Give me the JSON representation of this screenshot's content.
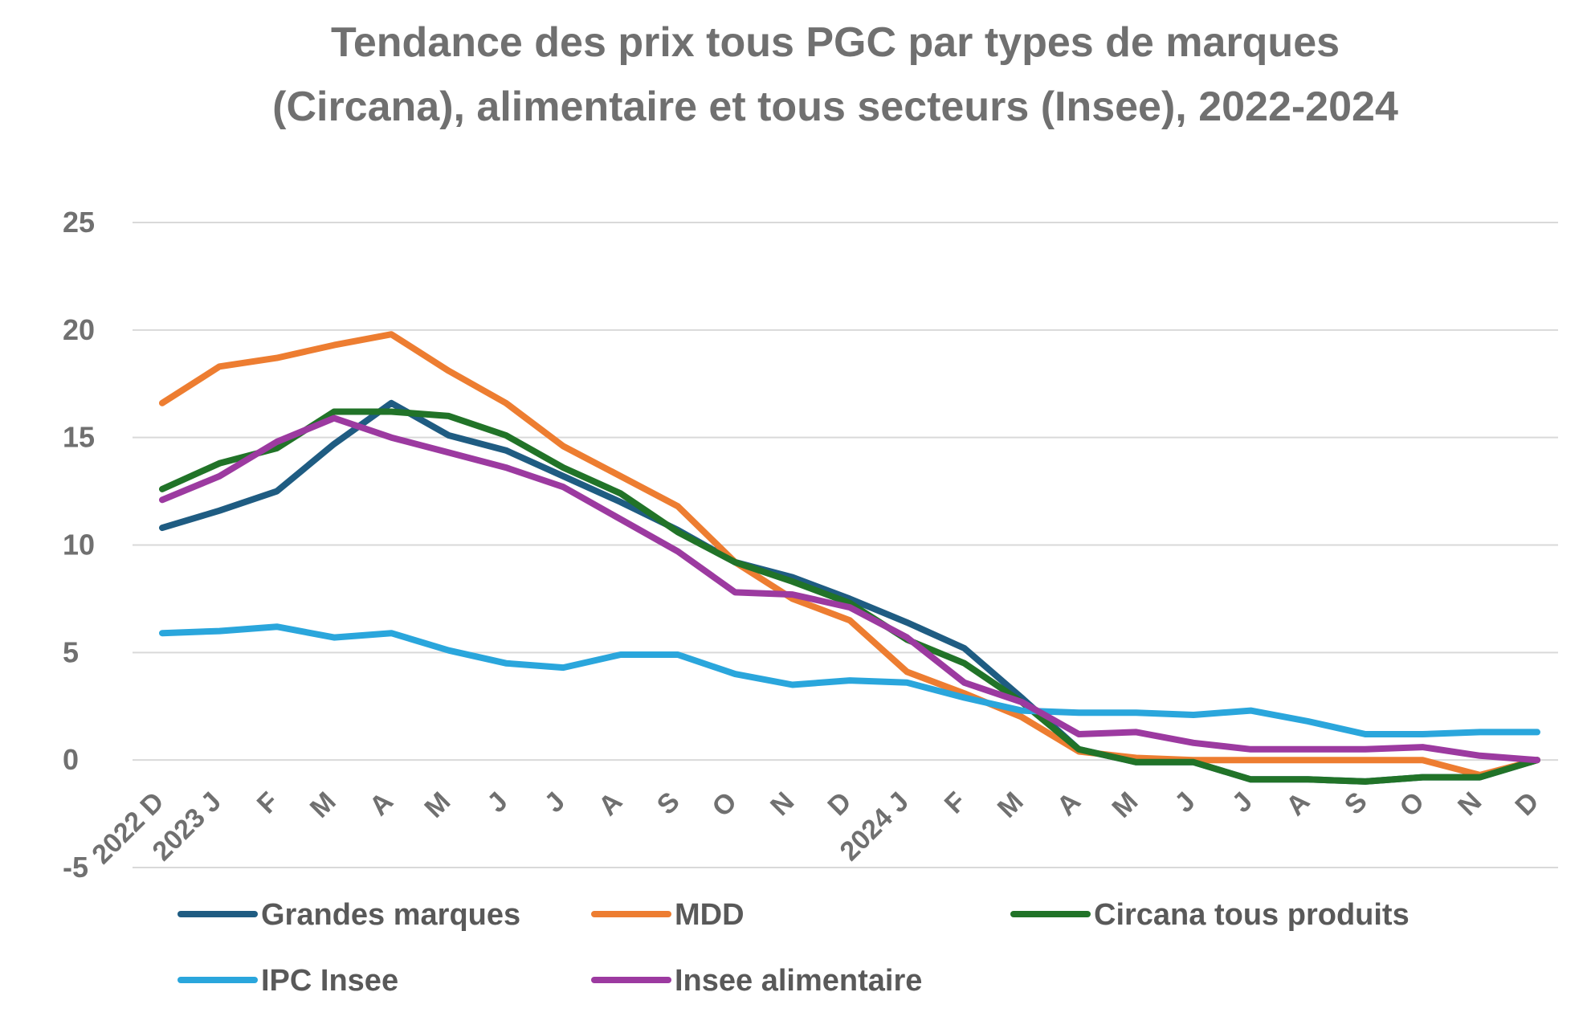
{
  "chart_data": {
    "type": "line",
    "title_lines": [
      "Tendance des prix tous PGC par types de marques",
      "(Circana), alimentaire et tous secteurs (Insee), 2022-2024"
    ],
    "categories": [
      "2022 D",
      "2023 J",
      "F",
      "M",
      "A",
      "M",
      "J",
      "J",
      "A",
      "S",
      "O",
      "N",
      "D",
      "2024 J",
      "F",
      "M",
      "A",
      "M",
      "J",
      "J",
      "A",
      "S",
      "O",
      "N",
      "D"
    ],
    "ylim": [
      -5,
      25
    ],
    "yticks": [
      25,
      20,
      15,
      10,
      5,
      0,
      -5
    ],
    "grid": true,
    "legend_position": "bottom",
    "series": [
      {
        "name": "Grandes marques",
        "color": "#1F5C82",
        "values": [
          10.8,
          11.6,
          12.5,
          14.7,
          16.6,
          15.1,
          14.4,
          13.2,
          12.0,
          10.7,
          9.2,
          8.5,
          7.5,
          6.4,
          5.2,
          2.9,
          0.5,
          -0.1,
          -0.1,
          -0.9,
          -0.9,
          -1.0,
          -0.8,
          -0.8,
          0.0
        ]
      },
      {
        "name": "MDD",
        "color": "#ED7D31",
        "values": [
          16.6,
          18.3,
          18.7,
          19.3,
          19.8,
          18.1,
          16.6,
          14.6,
          13.2,
          11.8,
          9.2,
          7.5,
          6.5,
          4.1,
          3.1,
          2.0,
          0.4,
          0.1,
          0.0,
          0.0,
          0.0,
          0.0,
          0.0,
          -0.7,
          0.0
        ]
      },
      {
        "name": "Circana tous produits",
        "color": "#217328",
        "values": [
          12.6,
          13.8,
          14.5,
          16.2,
          16.2,
          16.0,
          15.1,
          13.6,
          12.4,
          10.6,
          9.2,
          8.3,
          7.3,
          5.6,
          4.5,
          2.7,
          0.5,
          -0.1,
          -0.1,
          -0.9,
          -0.9,
          -1.0,
          -0.8,
          -0.8,
          0.0
        ]
      },
      {
        "name": "IPC Insee",
        "color": "#2AA6DC",
        "values": [
          5.9,
          6.0,
          6.2,
          5.7,
          5.9,
          5.1,
          4.5,
          4.3,
          4.9,
          4.9,
          4.0,
          3.5,
          3.7,
          3.6,
          2.9,
          2.3,
          2.2,
          2.2,
          2.1,
          2.3,
          1.8,
          1.2,
          1.2,
          1.3,
          1.3
        ]
      },
      {
        "name": "Insee alimentaire",
        "color": "#9C3AA0",
        "values": [
          12.1,
          13.2,
          14.8,
          15.9,
          15.0,
          14.3,
          13.6,
          12.7,
          11.2,
          9.7,
          7.8,
          7.7,
          7.1,
          5.7,
          3.6,
          2.7,
          1.2,
          1.3,
          0.8,
          0.5,
          0.5,
          0.5,
          0.6,
          0.2,
          0.0
        ]
      }
    ]
  }
}
